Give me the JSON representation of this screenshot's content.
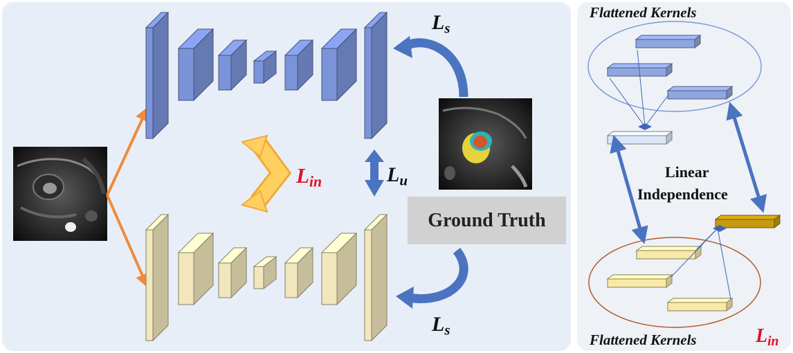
{
  "ground_truth_label": "Ground Truth",
  "loss_labels": {
    "ls_top": {
      "main": "L",
      "sub": "s"
    },
    "ls_bottom": {
      "main": "L",
      "sub": "s"
    },
    "lu": {
      "main": "L",
      "sub": "u"
    },
    "lin_left": {
      "main": "L",
      "sub": "in"
    },
    "lin_right": {
      "main": "L",
      "sub": "in"
    }
  },
  "kernels_title_top": "Flattened Kernels",
  "kernels_title_bottom": "Flattened Kernels",
  "linear_independence": {
    "line1": "Linear",
    "line2": "Independence"
  },
  "colors": {
    "blue_network": "#7b93d9",
    "yellow_network": "#f2e6bc",
    "orange_arrow": "#ef8a3a",
    "blue_arrow": "#4a74c0",
    "yellow_arrow": "#ffd060",
    "red_text": "#e0102a",
    "gold_kernel": "#c49a10"
  },
  "icons": {
    "input_image": "cardiac-mri-icon",
    "output_image": "segmented-cardiac-mri-icon"
  }
}
